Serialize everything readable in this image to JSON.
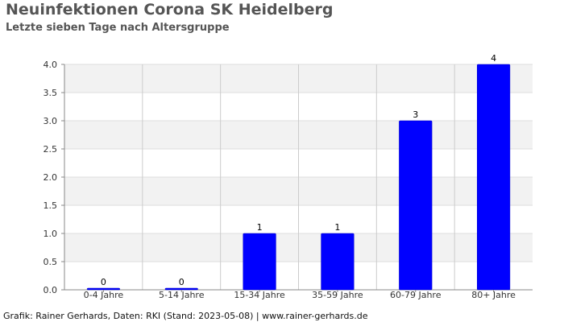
{
  "header": {
    "title": "Neuinfektionen Corona SK Heidelberg",
    "subtitle": "Letzte sieben Tage nach Altersgruppe"
  },
  "footer": {
    "credit": "Grafik: Rainer Gerhards, Daten: RKI (Stand: 2023-05-08) | www.rainer-gerhards.de"
  },
  "colors": {
    "bar": "#0000ff",
    "band": "#f2f2f2",
    "grid": "#dddddd",
    "axis": "#888888"
  },
  "chart_data": {
    "type": "bar",
    "title": "Neuinfektionen Corona SK Heidelberg",
    "subtitle": "Letzte sieben Tage nach Altersgruppe",
    "xlabel": "",
    "ylabel": "",
    "categories": [
      "0-4 Jahre",
      "5-14 Jahre",
      "15-34 Jahre",
      "35-59 Jahre",
      "60-79 Jahre",
      "80+ Jahre"
    ],
    "values": [
      0,
      0,
      1,
      1,
      3,
      4
    ],
    "data_labels": [
      "0",
      "0",
      "1",
      "1",
      "3",
      "4"
    ],
    "ylim": [
      0,
      4
    ],
    "yticks": [
      "0.0",
      "0.5",
      "1.0",
      "1.5",
      "2.0",
      "2.5",
      "3.0",
      "3.5",
      "4.0"
    ],
    "grid": true,
    "legend": "none"
  }
}
